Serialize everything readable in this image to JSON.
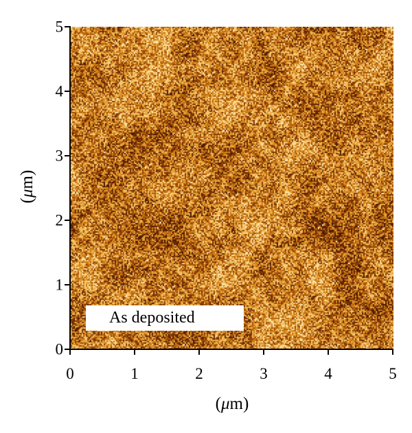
{
  "figure": {
    "sample_label": "As deposited",
    "x_axis": {
      "label_prefix": "(",
      "label_unit_mu": "μ",
      "label_suffix": "m)",
      "ticks": [
        "0",
        "1",
        "2",
        "3",
        "4",
        "5"
      ]
    },
    "y_axis": {
      "label_prefix": "(",
      "label_unit_mu": "μ",
      "label_suffix": "m)",
      "ticks": [
        "0",
        "1",
        "2",
        "3",
        "4",
        "5"
      ]
    },
    "image_extent_um": [
      0,
      5
    ],
    "colormap": [
      "#4a1a02",
      "#8a3c08",
      "#c9740f",
      "#e9a437",
      "#f7d27f",
      "#fff3cf"
    ]
  }
}
